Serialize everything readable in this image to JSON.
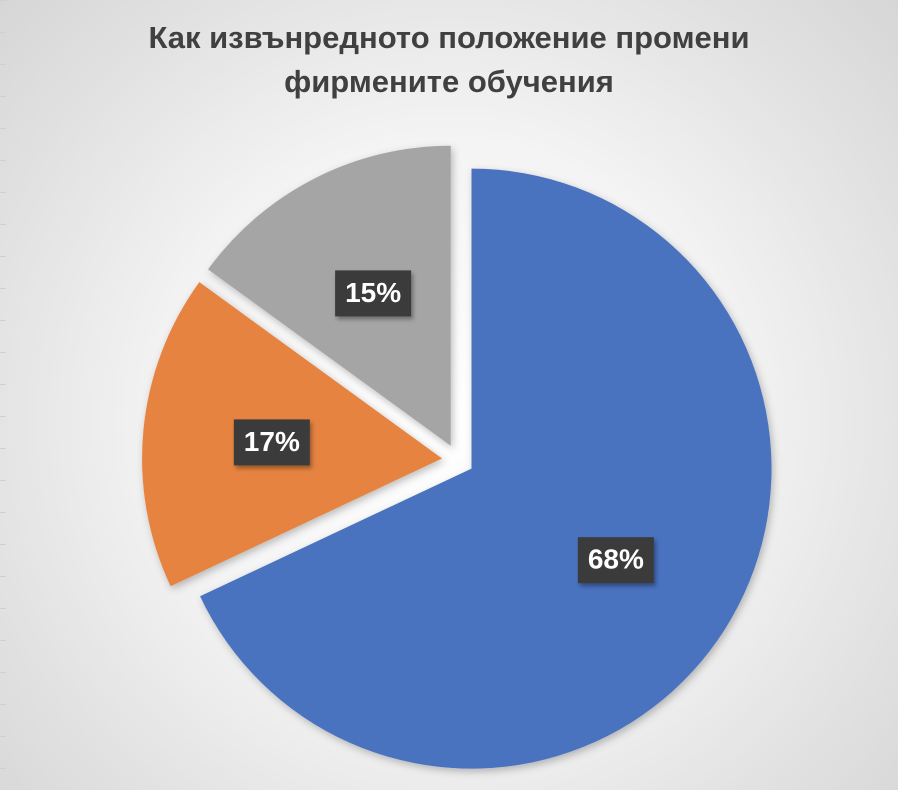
{
  "chart_data": {
    "type": "pie",
    "title": "Как извънредното положение промени фирмените обучения",
    "title_lines": [
      "Как извънредното положение промени",
      "фирмените обучения"
    ],
    "slices": [
      {
        "value": 68,
        "label": "68%",
        "color": "#4a72bf"
      },
      {
        "value": 17,
        "label": "17%",
        "color": "#e6833f"
      },
      {
        "value": 15,
        "label": "15%",
        "color": "#a5a5a5"
      }
    ],
    "start_angle": "12 o'clock",
    "direction": "clockwise",
    "exploded": true,
    "legend": "none",
    "data_label_style": "white bold text on dark box"
  }
}
